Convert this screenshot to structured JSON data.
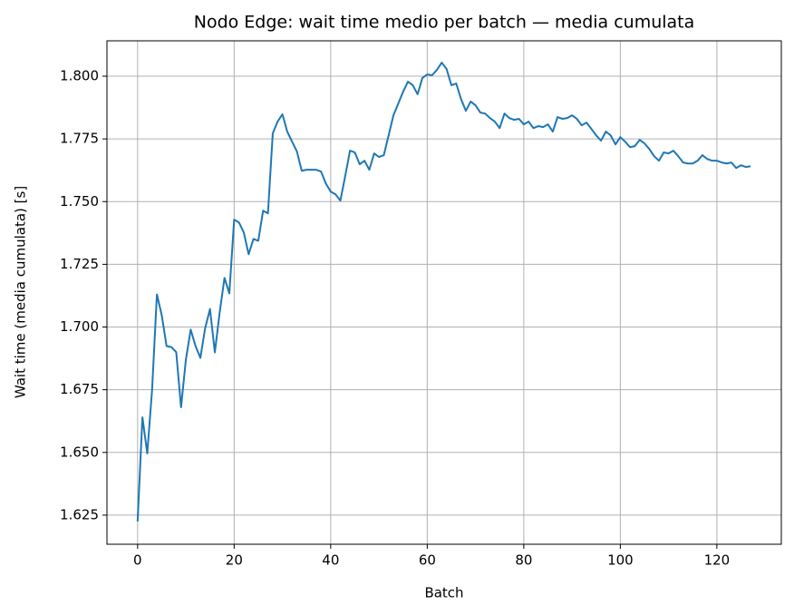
{
  "chart_data": {
    "type": "line",
    "title": "Nodo Edge: wait time medio per batch — media cumulata",
    "xlabel": "Batch",
    "ylabel": "Wait time (media cumulata) [s]",
    "color": "#1f77b4",
    "grid": true,
    "xlim": [
      -6.35,
      133.35
    ],
    "xticks": [
      0,
      20,
      40,
      60,
      80,
      100,
      120
    ],
    "ylim": [
      1.6134,
      1.8141
    ],
    "yticks": [
      {
        "value": 1.625,
        "label": "1.625"
      },
      {
        "value": 1.65,
        "label": "1.650"
      },
      {
        "value": 1.675,
        "label": "1.675"
      },
      {
        "value": 1.7,
        "label": "1.700"
      },
      {
        "value": 1.725,
        "label": "1.725"
      },
      {
        "value": 1.75,
        "label": "1.750"
      },
      {
        "value": 1.775,
        "label": "1.775"
      },
      {
        "value": 1.8,
        "label": "1.800"
      }
    ],
    "x": [
      0,
      1,
      2,
      3,
      4,
      5,
      6,
      7,
      8,
      9,
      10,
      11,
      12,
      13,
      14,
      15,
      16,
      17,
      18,
      19,
      20,
      21,
      22,
      23,
      24,
      25,
      26,
      27,
      28,
      29,
      30,
      31,
      32,
      33,
      34,
      35,
      36,
      37,
      38,
      39,
      40,
      41,
      42,
      43,
      44,
      45,
      46,
      47,
      48,
      49,
      50,
      51,
      52,
      53,
      54,
      55,
      56,
      57,
      58,
      59,
      60,
      61,
      62,
      63,
      64,
      65,
      66,
      67,
      68,
      69,
      70,
      71,
      72,
      73,
      74,
      75,
      76,
      77,
      78,
      79,
      80,
      81,
      82,
      83,
      84,
      85,
      86,
      87,
      88,
      89,
      90,
      91,
      92,
      93,
      94,
      95,
      96,
      97,
      98,
      99,
      100,
      101,
      102,
      103,
      104,
      105,
      106,
      107,
      108,
      109,
      110,
      111,
      112,
      113,
      114,
      115,
      116,
      117,
      118,
      119,
      120,
      121,
      122,
      123,
      124,
      125,
      126,
      127
    ],
    "values": [
      1.6225,
      1.664,
      1.6496,
      1.675,
      1.713,
      1.7047,
      1.6924,
      1.692,
      1.69,
      1.668,
      1.687,
      1.699,
      1.6924,
      1.6877,
      1.6996,
      1.7072,
      1.6899,
      1.7058,
      1.7196,
      1.7134,
      1.7428,
      1.7417,
      1.7377,
      1.729,
      1.7351,
      1.7344,
      1.7464,
      1.7453,
      1.7772,
      1.7819,
      1.7848,
      1.7779,
      1.7739,
      1.77,
      1.7623,
      1.7627,
      1.7627,
      1.7627,
      1.762,
      1.7572,
      1.754,
      1.7529,
      1.7504,
      1.7601,
      1.7703,
      1.7696,
      1.7649,
      1.7663,
      1.7627,
      1.7692,
      1.7678,
      1.7685,
      1.7764,
      1.7844,
      1.7891,
      1.7938,
      1.7978,
      1.7964,
      1.7928,
      1.7993,
      1.8007,
      1.8004,
      1.8025,
      1.8054,
      1.8029,
      1.7964,
      1.7971,
      1.7909,
      1.7862,
      1.7899,
      1.7884,
      1.7855,
      1.7851,
      1.7833,
      1.7819,
      1.7793,
      1.7851,
      1.7833,
      1.7826,
      1.783,
      1.7808,
      1.7819,
      1.7793,
      1.7801,
      1.7797,
      1.7808,
      1.7779,
      1.7837,
      1.783,
      1.7833,
      1.7844,
      1.783,
      1.7804,
      1.7815,
      1.779,
      1.7764,
      1.7743,
      1.7779,
      1.7764,
      1.7728,
      1.7757,
      1.7739,
      1.7717,
      1.7721,
      1.7746,
      1.7732,
      1.771,
      1.7681,
      1.7663,
      1.7696,
      1.7692,
      1.7703,
      1.7681,
      1.7656,
      1.7652,
      1.7652,
      1.7663,
      1.7685,
      1.767,
      1.7663,
      1.7663,
      1.7656,
      1.7652,
      1.7656,
      1.7634,
      1.7645,
      1.7638,
      1.7641
    ]
  }
}
